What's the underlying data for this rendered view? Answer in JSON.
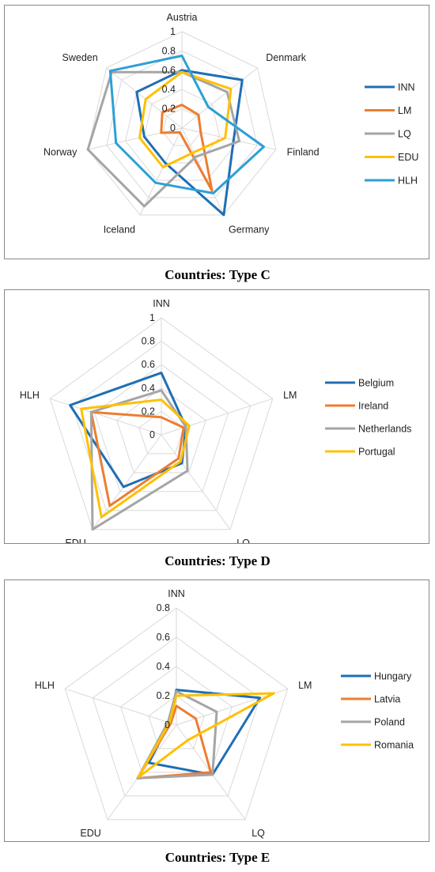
{
  "chart_data": [
    {
      "type": "radar",
      "caption": "Countries: Type C",
      "categories": [
        "Austria",
        "Denmark",
        "Finland",
        "Germany",
        "Iceland",
        "Norway",
        "Sweden"
      ],
      "ticks": [
        "0",
        "0.2",
        "0.4",
        "0.6",
        "0.8",
        "1"
      ],
      "rmax": 1,
      "legend_position": "right",
      "series": [
        {
          "name": "INN",
          "color": "#1f6fb4",
          "values": [
            0.6,
            0.8,
            0.55,
            1.0,
            0.4,
            0.4,
            0.6
          ]
        },
        {
          "name": "LM",
          "color": "#ed7d31",
          "values": [
            0.24,
            0.22,
            0.2,
            0.72,
            0.05,
            0.22,
            0.26
          ]
        },
        {
          "name": "LQ",
          "color": "#a5a5a5",
          "values": [
            0.58,
            0.6,
            0.61,
            0.33,
            0.9,
            1.0,
            0.93
          ]
        },
        {
          "name": "EDU",
          "color": "#ffc000",
          "values": [
            0.58,
            0.65,
            0.46,
            0.28,
            0.45,
            0.45,
            0.48
          ]
        },
        {
          "name": "HLH",
          "color": "#2e9fd6",
          "values": [
            0.75,
            0.35,
            0.87,
            0.75,
            0.63,
            0.7,
            0.95
          ]
        }
      ]
    },
    {
      "type": "radar",
      "caption": "Countries: Type D",
      "categories": [
        "INN",
        "LM",
        "LQ",
        "EDU",
        "HLH"
      ],
      "ticks": [
        "0",
        "0.2",
        "0.4",
        "0.6",
        "0.8",
        "1"
      ],
      "rmax": 1,
      "legend_position": "right",
      "series": [
        {
          "name": "Belgium",
          "color": "#1f6fb4",
          "values": [
            0.53,
            0.22,
            0.3,
            0.55,
            0.82
          ]
        },
        {
          "name": "Ireland",
          "color": "#ed7d31",
          "values": [
            0.15,
            0.2,
            0.25,
            0.75,
            0.63
          ]
        },
        {
          "name": "Netherlands",
          "color": "#a5a5a5",
          "values": [
            0.38,
            0.22,
            0.38,
            1.0,
            0.63
          ]
        },
        {
          "name": "Portugal",
          "color": "#ffc000",
          "values": [
            0.3,
            0.25,
            0.28,
            0.87,
            0.72
          ]
        }
      ]
    },
    {
      "type": "radar",
      "caption": "Countries: Type E",
      "categories": [
        "INN",
        "LM",
        "LQ",
        "EDU",
        "HLH"
      ],
      "ticks": [
        "0",
        "0.2",
        "0.4",
        "0.6",
        "0.8"
      ],
      "rmax": 0.8,
      "legend_position": "right",
      "series": [
        {
          "name": "Hungary",
          "color": "#1f6fb4",
          "values": [
            0.24,
            0.6,
            0.42,
            0.32,
            0.05
          ]
        },
        {
          "name": "Latvia",
          "color": "#ed7d31",
          "values": [
            0.13,
            0.14,
            0.4,
            0.45,
            0.04
          ]
        },
        {
          "name": "Poland",
          "color": "#a5a5a5",
          "values": [
            0.23,
            0.29,
            0.42,
            0.45,
            0.06
          ]
        },
        {
          "name": "Romania",
          "color": "#ffc000",
          "values": [
            0.2,
            0.7,
            0.13,
            0.44,
            0.05
          ]
        }
      ]
    }
  ]
}
